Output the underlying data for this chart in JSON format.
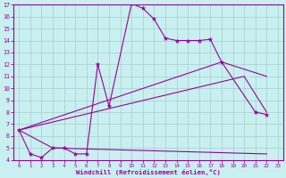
{
  "background_color": "#c8f0f0",
  "grid_color": "#b0d8d8",
  "line_color": "#990099",
  "xlabel": "Windchill (Refroidissement éolien,°C)",
  "xlim": [
    -0.5,
    23.5
  ],
  "ylim": [
    4,
    17
  ],
  "xticks": [
    0,
    1,
    2,
    3,
    4,
    5,
    6,
    7,
    8,
    9,
    10,
    11,
    12,
    13,
    14,
    15,
    16,
    17,
    18,
    19,
    20,
    21,
    22,
    23
  ],
  "yticks": [
    4,
    5,
    6,
    7,
    8,
    9,
    10,
    11,
    12,
    13,
    14,
    15,
    16,
    17
  ],
  "curve1_x": [
    0,
    1,
    2,
    3,
    4,
    5,
    6,
    7,
    8,
    10,
    11,
    12,
    13,
    14,
    15,
    16,
    17,
    18,
    21,
    22
  ],
  "curve1_y": [
    6.5,
    4.5,
    4.2,
    5.0,
    5.0,
    4.5,
    4.5,
    12.0,
    8.5,
    17.1,
    16.7,
    15.8,
    14.2,
    14.0,
    14.0,
    14.0,
    14.1,
    12.2,
    8.0,
    7.8
  ],
  "curve2_x": [
    0,
    3,
    22
  ],
  "curve2_y": [
    6.5,
    5.0,
    4.5
  ],
  "curve3_x": [
    0,
    18,
    22
  ],
  "curve3_y": [
    6.5,
    12.2,
    11.0
  ],
  "curve4_x": [
    0,
    20,
    22
  ],
  "curve4_y": [
    6.5,
    11.0,
    8.0
  ]
}
